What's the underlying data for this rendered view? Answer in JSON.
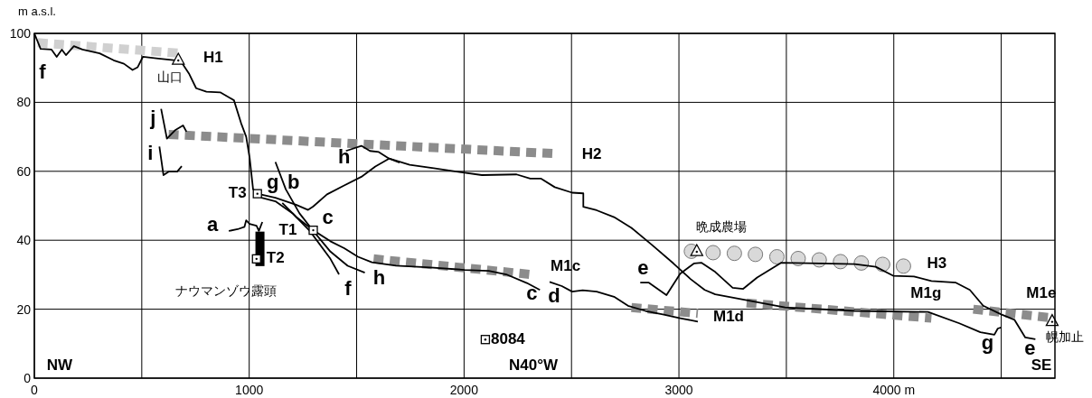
{
  "chart_data": {
    "type": "line",
    "ylabel": "m a.s.l.",
    "xlim": [
      0,
      4750
    ],
    "ylim": [
      0,
      100
    ],
    "xticks": [
      0,
      {
        "value": 500,
        "label": null
      },
      1000,
      {
        "value": 1500,
        "label": null
      },
      2000,
      {
        "value": 2500,
        "label": null
      },
      3000,
      {
        "value": 3500,
        "label": null
      },
      {
        "value": 4000,
        "label": "4000 m"
      },
      {
        "value": 4500,
        "label": null
      }
    ],
    "yticks": [
      0,
      20,
      40,
      60,
      80,
      100
    ],
    "grid": true,
    "series": [
      {
        "line_style": "dashed",
        "color": "#d0d0d0",
        "x": [
          16,
          689
        ],
        "values": [
          97.3,
          94.2
        ]
      },
      {
        "line_style": "dashed",
        "color": "#8c8c8c",
        "x": [
          625,
          2430
        ],
        "values": [
          70.7,
          65.1
        ]
      },
      {
        "line_style": "dashed",
        "color": "#8c8c8c",
        "x": [
          1579,
          2308
        ],
        "values": [
          34.6,
          30.1
        ]
      },
      {
        "line_style": "dashed",
        "color": "#8c8c8c",
        "x": [
          2779,
          3088
        ],
        "values": [
          20.5,
          18.8
        ]
      },
      {
        "line_style": "dashed",
        "color": "#8c8c8c",
        "x": [
          3315,
          4175
        ],
        "values": [
          21.8,
          17.4
        ]
      },
      {
        "line_style": "dashed",
        "color": "#8c8c8c",
        "x": [
          4370,
          4745
        ],
        "values": [
          20.0,
          17.4
        ]
      },
      {
        "type": "scatter",
        "marker": "circle",
        "color": "#d9d9d9",
        "x": [
          3058,
          3159,
          3258,
          3356,
          3456,
          3555,
          3653,
          3752,
          3849,
          3948,
          4045
        ],
        "values": [
          36.8,
          36.4,
          36.2,
          35.9,
          35.2,
          34.7,
          34.3,
          33.8,
          33.4,
          33.0,
          32.5
        ]
      },
      {
        "line_style": "solid",
        "color": "#000000",
        "x": [
          0,
          29,
          80,
          104,
          128,
          147,
          184,
          224,
          304,
          369,
          417,
          457,
          481,
          505,
          577,
          657,
          689,
          721,
          753,
          801,
          865,
          929,
          962,
          986,
          1002,
          1018,
          1058,
          1122,
          1202,
          1282,
          1378,
          1418
        ],
        "values": [
          100,
          95.5,
          95.3,
          93.2,
          95.3,
          93.7,
          96.3,
          95.3,
          94.2,
          92.2,
          91.2,
          89.4,
          90.2,
          93.2,
          92.7,
          92.2,
          91.2,
          88.2,
          84.1,
          83.1,
          82.9,
          80.6,
          74,
          70,
          63.9,
          54.8,
          52.3,
          51.3,
          47.8,
          42.7,
          34.6,
          30.1
        ]
      },
      {
        "line_style": "solid",
        "color": "#000000",
        "x": [
          1038,
          1122,
          1218,
          1274,
          1298,
          1362,
          1442,
          1522,
          1587,
          1651,
          1747,
          1859,
          1987,
          2083,
          2244,
          2308,
          2357,
          2422,
          2503,
          2555,
          2555,
          2617,
          2698,
          2779,
          2877,
          2974,
          3055,
          3120,
          3169,
          3315,
          3494,
          3818,
          4159,
          4305,
          4403,
          4468,
          4484,
          4500
        ],
        "values": [
          53.5,
          52.3,
          50.3,
          48.8,
          49.8,
          53.3,
          55.9,
          58.4,
          61.4,
          63.7,
          61.9,
          60.9,
          59.7,
          58.9,
          59.1,
          57.9,
          57.9,
          55.4,
          53.8,
          53.6,
          49.7,
          48.7,
          46.7,
          43.6,
          38.5,
          33.3,
          28.7,
          25.6,
          24.3,
          22.6,
          20.5,
          19.5,
          19.2,
          15.9,
          13.3,
          12.6,
          14.4,
          14.7
        ]
      },
      {
        "line_style": "solid",
        "color": "#000000",
        "x": [
          1450,
          1522,
          1562,
          1603,
          1651,
          1700
        ],
        "values": [
          65.9,
          67.4,
          65.9,
          65.6,
          63.7,
          62.5
        ]
      },
      {
        "line_style": "solid",
        "color": "#000000",
        "x": [
          1122,
          1170,
          1234,
          1298,
          1378,
          1458,
          1538
        ],
        "values": [
          62.7,
          54.8,
          47.8,
          42.7,
          36.7,
          32.6,
          30.6
        ]
      },
      {
        "line_style": "solid",
        "color": "#000000",
        "x": [
          1154,
          1218,
          1298,
          1378,
          1442,
          1506,
          1571,
          1683,
          1843,
          2003,
          2115,
          2196,
          2292,
          2353
        ],
        "values": [
          50.8,
          46.8,
          42.9,
          39.7,
          37.7,
          35.2,
          33.6,
          32.6,
          32.1,
          31.4,
          31.1,
          30.1,
          27.6,
          25.6
        ]
      },
      {
        "line_style": "solid",
        "color": "#000000",
        "x": [
          2398,
          2455,
          2503,
          2552,
          2617,
          2698,
          2763,
          2844,
          2925,
          3006,
          3088
        ],
        "values": [
          27.9,
          26.7,
          25.1,
          25.5,
          25.1,
          23.6,
          21.0,
          19.5,
          18.5,
          17.4,
          16.4
        ]
      },
      {
        "line_style": "solid",
        "color": "#000000",
        "x": [
          2820,
          2860,
          2942,
          3006,
          3071,
          3104,
          3169,
          3250,
          3299,
          3364,
          3477,
          3656,
          3818,
          3916,
          3997,
          4094,
          4175,
          4289,
          4354,
          4416,
          4500,
          4562,
          4612,
          4659
        ],
        "values": [
          27.7,
          27.7,
          24.1,
          30.3,
          33.3,
          33.5,
          30.8,
          26.2,
          25.9,
          29.2,
          33.5,
          33.3,
          33.1,
          32.3,
          29.7,
          29.5,
          28.2,
          27.7,
          25.6,
          21.0,
          18.5,
          16.9,
          11.8,
          11.3
        ]
      },
      {
        "line_style": "solid",
        "color": "#000000",
        "x": [
          905,
          946,
          978,
          986,
          1002,
          1034,
          1045,
          1061
        ],
        "values": [
          42.7,
          43.2,
          43.9,
          45.8,
          44.7,
          44.2,
          42.7,
          45.3
        ]
      },
      {
        "line_style": "solid",
        "color": "#000000",
        "x": [
          590,
          617,
          657,
          692,
          708
        ],
        "values": [
          78.1,
          69.5,
          72.0,
          73.3,
          71.5
        ]
      },
      {
        "line_style": "solid",
        "color": "#000000",
        "x": [
          582,
          601,
          625,
          665,
          686
        ],
        "values": [
          67.2,
          58.9,
          59.9,
          59.9,
          61.5
        ]
      },
      {
        "type": "bar",
        "color": "#000000",
        "x": [
          1050
        ],
        "base": [
          32.5
        ],
        "values": [
          10
        ]
      },
      {
        "type": "scatter",
        "marker": "triangle",
        "color": "#ffffff",
        "x": [
          670,
          3083,
          4737
        ],
        "values": [
          92.4,
          36.9,
          16.6
        ]
      },
      {
        "type": "scatter",
        "marker": "square",
        "color": "#ffffff",
        "x": [
          1038,
          1298,
          1034,
          2099
        ],
        "values": [
          53.5,
          42.9,
          34.6,
          11.2
        ]
      }
    ],
    "annotations": [
      {
        "text": "H1",
        "x": 689,
        "y": 94.2
      },
      {
        "text": "H2",
        "x": 2430,
        "y": 65.1
      },
      {
        "text": "H3",
        "x": 4045,
        "y": 32.5
      },
      {
        "text": "M1c",
        "x": 2308,
        "y": 30.1
      },
      {
        "text": "M1d",
        "x": 3088,
        "y": 18.8
      },
      {
        "text": "M1g",
        "x": 4175,
        "y": 17.4
      },
      {
        "text": "M1e",
        "x": 4745,
        "y": 17.4
      },
      {
        "text": "f",
        "x": 0,
        "y": 100
      },
      {
        "text": "f",
        "x": 1418,
        "y": 30.1
      },
      {
        "text": "j",
        "x": 590,
        "y": 78.1
      },
      {
        "text": "i",
        "x": 582,
        "y": 67.2
      },
      {
        "text": "h",
        "x": 1450,
        "y": 65.9
      },
      {
        "text": "g",
        "x": 1038,
        "y": 53.5
      },
      {
        "text": "b",
        "x": 1122,
        "y": 62.7
      },
      {
        "text": "c",
        "x": 1298,
        "y": 42.9
      },
      {
        "text": "a",
        "x": 905,
        "y": 42.7
      },
      {
        "text": "h",
        "x": 1538,
        "y": 30.6
      },
      {
        "text": "c",
        "x": 2353,
        "y": 25.6
      },
      {
        "text": "d",
        "x": 2398,
        "y": 27.9
      },
      {
        "text": "e",
        "x": 2820,
        "y": 27.7
      },
      {
        "text": "g",
        "x": 4500,
        "y": 14.7
      },
      {
        "text": "e",
        "x": 4659,
        "y": 11.3
      },
      {
        "text": "T3",
        "x": 1038,
        "y": 53.5
      },
      {
        "text": "T1",
        "x": 1298,
        "y": 42.9
      },
      {
        "text": "T2",
        "x": 1034,
        "y": 34.6
      },
      {
        "text": "8084",
        "x": 2099,
        "y": 11.2
      },
      {
        "text": "山口",
        "x": 670,
        "y": 92.4
      },
      {
        "text": "ナウマンゾウ露頭",
        "x": 1050,
        "y": 32.5
      },
      {
        "text": "晩成農場",
        "x": 3083,
        "y": 36.9
      },
      {
        "text": "幌加止",
        "x": 4737,
        "y": 16.6
      },
      "NW",
      "N40°W",
      "SE"
    ]
  }
}
